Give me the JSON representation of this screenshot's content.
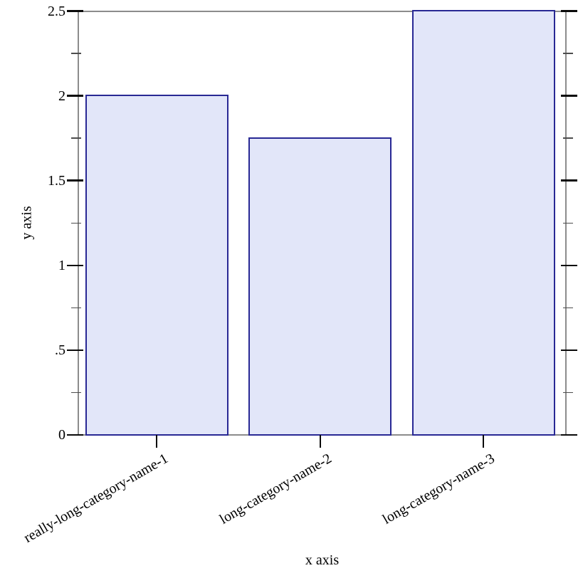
{
  "chart_data": {
    "type": "bar",
    "title": "",
    "categories": [
      "really-long-category-name-1",
      "long-category-name-2",
      "long-category-name-3"
    ],
    "values": [
      2,
      1.75,
      2.5
    ],
    "xlabel": "x axis",
    "ylabel": "y axis",
    "ylim": [
      0,
      2.5
    ],
    "y_major_ticks": [
      {
        "value": 0,
        "label": "0"
      },
      {
        "value": 0.5,
        "label": ".5"
      },
      {
        "value": 1,
        "label": "1"
      },
      {
        "value": 1.5,
        "label": "1.5"
      },
      {
        "value": 2,
        "label": "2"
      },
      {
        "value": 2.5,
        "label": "2.5"
      }
    ],
    "y_minor_ticks": [
      0.25,
      0.75,
      1.25,
      1.75,
      2.25
    ],
    "grid": false,
    "legend": "none",
    "frame": "full-box-with-mirrored-ticks",
    "category_label_angle_deg": -30,
    "colors": {
      "bar_fill": "#e2e6f9",
      "bar_border": "#282894",
      "axis_line": "#8c8c8c",
      "major_tick": "#0a0a0a",
      "minor_tick": "#4d4d4d",
      "text": "#000000",
      "background": "#ffffff"
    }
  }
}
